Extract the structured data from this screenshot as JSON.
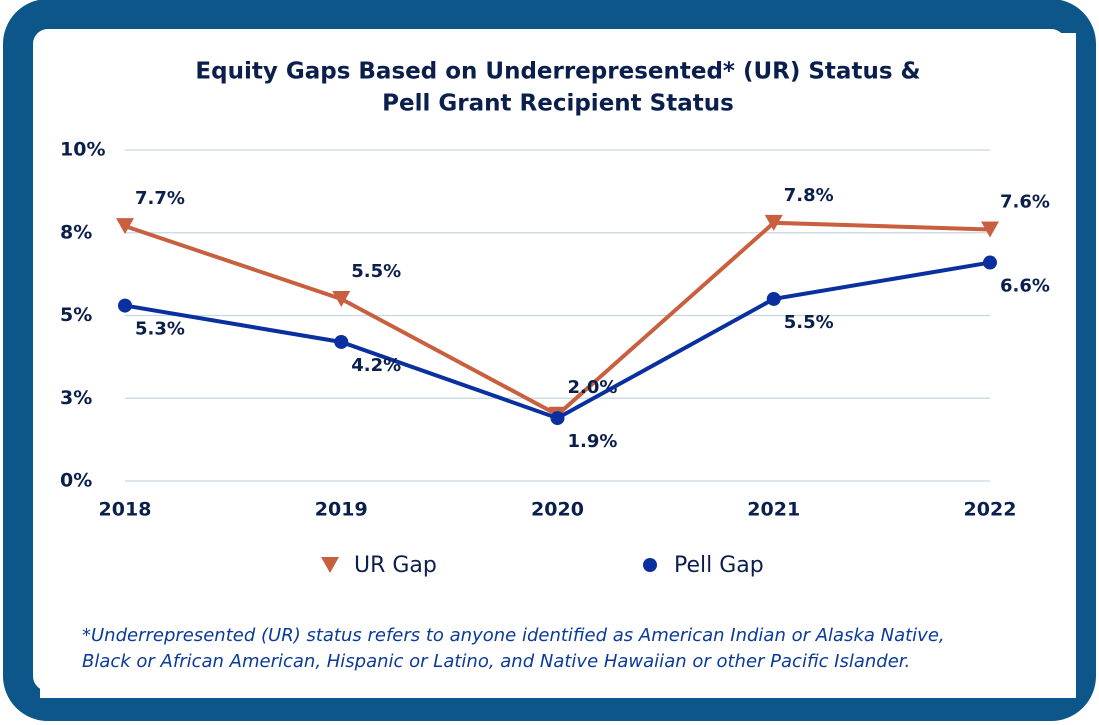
{
  "chart_data": {
    "type": "line",
    "title": [
      "Equity Gaps Based on Underrepresented* (UR) Status &",
      "Pell Grant Recipient Status"
    ],
    "categories": [
      "2018",
      "2019",
      "2020",
      "2021",
      "2022"
    ],
    "series": [
      {
        "name": "UR Gap",
        "color": "#c8603f",
        "marker": "triangle-down",
        "values": [
          7.7,
          5.5,
          2.0,
          7.8,
          7.6
        ],
        "value_labels": [
          "7.7%",
          "5.5%",
          "2.0%",
          "7.8%",
          "7.6%"
        ]
      },
      {
        "name": "Pell Gap",
        "color": "#0a2f9e",
        "marker": "circle",
        "values": [
          5.3,
          4.2,
          1.9,
          5.5,
          6.6
        ],
        "value_labels": [
          "5.3%",
          "4.2%",
          "1.9%",
          "5.5%",
          "6.6%"
        ]
      }
    ],
    "ylim": [
      0,
      10
    ],
    "yticks": [
      {
        "value": 0,
        "label": "0%"
      },
      {
        "value": 2.5,
        "label": "3%"
      },
      {
        "value": 5,
        "label": "5%"
      },
      {
        "value": 7.5,
        "label": "8%"
      },
      {
        "value": 10,
        "label": "10%"
      }
    ],
    "grid": true,
    "legend": "bottom",
    "footnote": [
      "*Underrepresented (UR) status refers to anyone identified as American Indian or Alaska Native,",
      "Black or African American, Hispanic or Latino, and Native Hawaiian or other Pacific Islander."
    ]
  }
}
